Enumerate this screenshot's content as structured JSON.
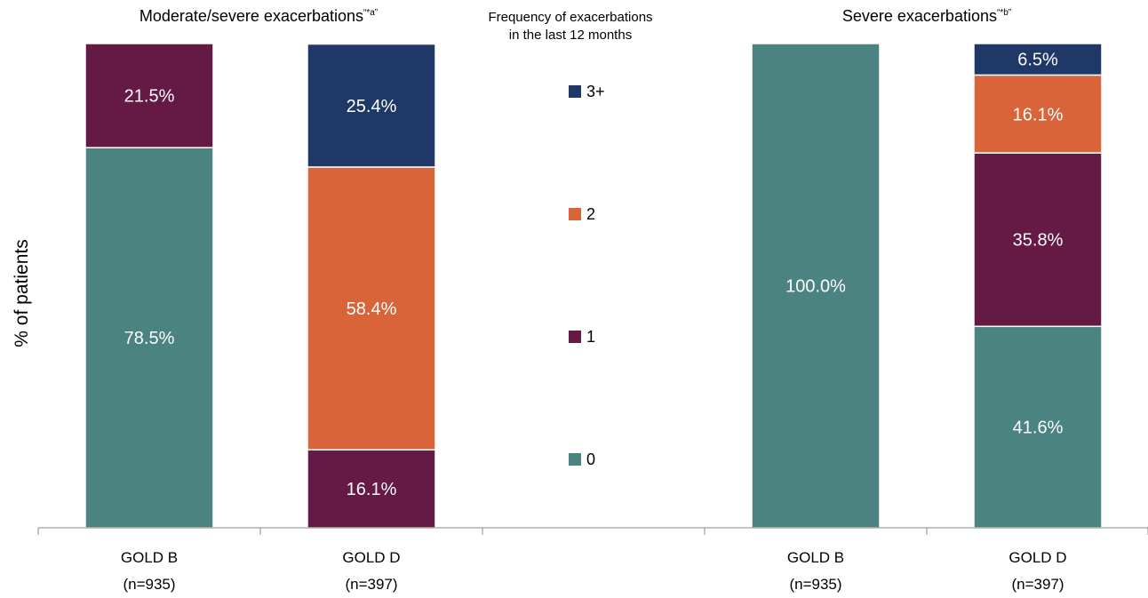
{
  "chart_data": [
    {
      "type": "bar",
      "stacked": true,
      "title": "Moderate/severe exacerbations",
      "title_superscript": "“*a”",
      "ylabel": "% of patients",
      "ylim": [
        0,
        100
      ],
      "categories": [
        "GOLD B",
        "GOLD D"
      ],
      "category_notes": [
        "(n=935)",
        "(n=397)"
      ],
      "series": [
        {
          "name": "0",
          "values": [
            78.5,
            0
          ],
          "labels": [
            "78.5%",
            ""
          ]
        },
        {
          "name": "1",
          "values": [
            21.5,
            16.1
          ],
          "labels": [
            "21.5%",
            "16.1%"
          ]
        },
        {
          "name": "2",
          "values": [
            0,
            58.4
          ],
          "labels": [
            "",
            "58.4%"
          ]
        },
        {
          "name": "3+",
          "values": [
            0,
            25.4
          ],
          "labels": [
            "",
            "25.4%"
          ]
        }
      ]
    },
    {
      "type": "bar",
      "stacked": true,
      "title": "Severe exacerbations",
      "title_superscript": "“*b”",
      "ylim": [
        0,
        100
      ],
      "categories": [
        "GOLD B",
        "GOLD D"
      ],
      "category_notes": [
        "(n=935)",
        "(n=397)"
      ],
      "series": [
        {
          "name": "0",
          "values": [
            100.0,
            41.6
          ],
          "labels": [
            "100.0%",
            "41.6%"
          ]
        },
        {
          "name": "1",
          "values": [
            0,
            35.8
          ],
          "labels": [
            "",
            "35.8%"
          ]
        },
        {
          "name": "2",
          "values": [
            0,
            16.1
          ],
          "labels": [
            "",
            "16.1%"
          ]
        },
        {
          "name": "3+",
          "values": [
            0,
            6.5
          ],
          "labels": [
            "",
            "6.5%"
          ]
        }
      ]
    }
  ],
  "legend": {
    "title_lines": [
      "Frequency of exacerbations",
      "in the last 12 months"
    ],
    "placement": "center",
    "items": [
      {
        "label": "3+",
        "color": "#1f3868"
      },
      {
        "label": "2",
        "color": "#d9643a"
      },
      {
        "label": "1",
        "color": "#641a45"
      },
      {
        "label": "0",
        "color": "#4a8380"
      }
    ]
  },
  "colors": {
    "0": "#4a8380",
    "1": "#641a45",
    "2": "#d9643a",
    "3+": "#1f3868",
    "segment_border": "#ffffff"
  }
}
